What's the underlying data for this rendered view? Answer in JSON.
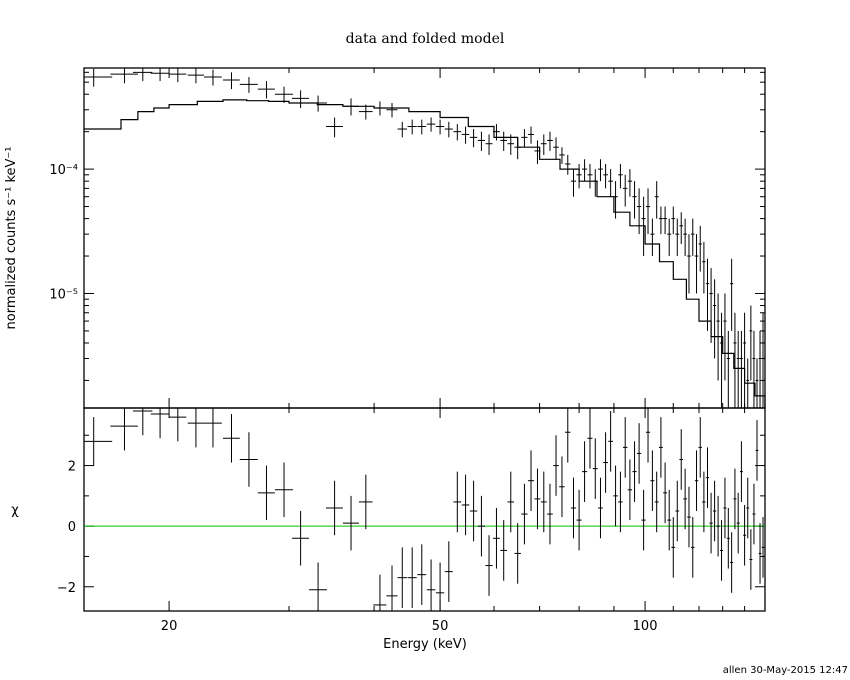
{
  "title": "data and folded model",
  "footer": "allen 30-May-2015 12:47",
  "chart_data": [
    {
      "panel": "spectrum",
      "type": "scatter",
      "title": "data and folded model",
      "xlabel": "Energy (keV)",
      "ylabel": "normalized counts s⁻¹ keV⁻¹",
      "xscale": "log",
      "yscale": "log",
      "xlim": [
        15,
        150
      ],
      "ylim": [
        1.2e-06,
        0.00065
      ],
      "ytick_labels": [
        "10⁻⁴",
        "10⁻⁵"
      ],
      "ytick_values": [
        0.0001,
        1e-05
      ],
      "series": [
        {
          "kind": "data",
          "x": [
            15.5,
            17.2,
            18.3,
            19.4,
            20.6,
            21.9,
            23.2,
            24.7,
            26.2,
            27.8,
            29.5,
            31.2,
            33.1,
            35.0,
            37.0,
            38.9,
            40.8,
            42.5,
            44.0,
            45.5,
            47.0,
            48.5,
            50.0,
            51.5,
            53.0,
            54.5,
            56.0,
            57.5,
            59.0,
            60.5,
            62.0,
            63.5,
            65.0,
            66.5,
            68.0,
            69.5,
            71.0,
            72.5,
            74.0,
            75.5,
            77.0,
            78.5,
            80.0,
            81.5,
            83.0,
            84.5,
            86.0,
            87.5,
            89.0,
            90.5,
            92.0,
            93.5,
            95.0,
            96.5,
            98.0,
            99.5,
            101.0,
            102.5,
            104.0,
            105.5,
            107.0,
            108.5,
            110.0,
            111.5,
            113.0,
            114.5,
            116.0,
            117.5,
            119.0,
            120.5,
            122.0,
            123.5,
            125.0,
            126.5,
            128.0,
            129.5,
            131.0,
            132.5,
            134.0,
            135.5,
            137.0,
            138.5,
            140.0,
            141.5,
            143.0,
            144.5,
            146.0,
            147.5,
            149.0
          ],
          "xerr": [
            1.0,
            0.8,
            0.6,
            0.6,
            0.6,
            0.6,
            0.7,
            0.7,
            0.8,
            0.8,
            0.9,
            0.9,
            1.0,
            1.0,
            1.0,
            0.9,
            0.9,
            0.8,
            0.7,
            0.7,
            0.7,
            0.7,
            0.7,
            0.7,
            0.7,
            0.7,
            0.7,
            0.7,
            0.7,
            0.7,
            0.7,
            0.7,
            0.7,
            0.7,
            0.7,
            0.7,
            0.7,
            0.7,
            0.7,
            0.7,
            0.7,
            0.7,
            0.7,
            0.7,
            0.7,
            0.7,
            0.7,
            0.7,
            0.7,
            0.7,
            0.7,
            0.7,
            0.7,
            0.7,
            0.7,
            0.7,
            0.7,
            0.7,
            0.7,
            0.7,
            0.7,
            0.7,
            0.7,
            0.7,
            0.7,
            0.7,
            0.7,
            0.7,
            0.7,
            0.7,
            0.7,
            0.7,
            0.7,
            0.7,
            0.7,
            0.7,
            0.7,
            0.7,
            0.7,
            0.7,
            0.7,
            0.7,
            0.7,
            0.7,
            0.7,
            0.7,
            0.7,
            0.7,
            0.7
          ],
          "y": [
            0.00055,
            0.00058,
            0.0006,
            0.00059,
            0.00058,
            0.00057,
            0.00055,
            0.00052,
            0.00048,
            0.00044,
            0.0004,
            0.00037,
            0.00034,
            0.00022,
            0.00032,
            0.00029,
            0.00031,
            0.0003,
            0.00021,
            0.00022,
            0.00022,
            0.00023,
            0.00022,
            0.00021,
            0.0002,
            0.00019,
            0.00018,
            0.00017,
            0.00016,
            0.0002,
            0.00017,
            0.00016,
            0.00015,
            0.00018,
            0.00019,
            0.00014,
            0.00016,
            0.00017,
            0.00015,
            0.00013,
            0.00011,
            8e-05,
            9e-05,
            0.0001,
            9e-05,
            8e-05,
            0.0001,
            9e-05,
            8e-05,
            6e-05,
            9e-05,
            7e-05,
            8e-05,
            6e-05,
            5e-05,
            4e-05,
            5e-05,
            3e-05,
            6e-05,
            4e-05,
            4e-05,
            3e-05,
            4e-05,
            3e-05,
            3.5e-05,
            3e-05,
            2e-05,
            3e-05,
            2e-05,
            2.5e-05,
            1.8e-05,
            1.2e-05,
            1e-05,
            8e-06,
            6e-06,
            4e-06,
            6e-06,
            3e-06,
            1.2e-05,
            4e-06,
            3e-06,
            3e-06,
            4e-06,
            2e-06,
            5e-06,
            3e-06,
            2e-06,
            3e-06,
            4e-06
          ],
          "yerr_lo": [
            9e-05,
            9e-05,
            9e-05,
            8e-05,
            8e-05,
            8e-05,
            8e-05,
            8e-05,
            7e-05,
            7e-05,
            6e-05,
            6e-05,
            5e-05,
            4e-05,
            5e-05,
            4e-05,
            4e-05,
            4e-05,
            3e-05,
            3e-05,
            3e-05,
            3e-05,
            3e-05,
            3e-05,
            3e-05,
            3e-05,
            3e-05,
            3e-05,
            3e-05,
            3e-05,
            3e-05,
            3e-05,
            3e-05,
            3e-05,
            3e-05,
            3e-05,
            3e-05,
            3e-05,
            3e-05,
            2e-05,
            2e-05,
            2e-05,
            2e-05,
            2e-05,
            2e-05,
            2e-05,
            2e-05,
            2e-05,
            2e-05,
            2e-05,
            2e-05,
            2e-05,
            2e-05,
            2e-05,
            2e-05,
            2e-05,
            2e-05,
            1e-05,
            2e-05,
            1e-05,
            1e-05,
            1e-05,
            1e-05,
            1e-05,
            1e-05,
            1e-05,
            1e-05,
            1e-05,
            1e-05,
            1e-05,
            8e-06,
            7e-06,
            6e-06,
            5e-06,
            4e-06,
            3e-06,
            4e-06,
            2e-06,
            7e-06,
            3e-06,
            2e-06,
            2e-06,
            3e-06,
            1e-06,
            3e-06,
            2e-06,
            1e-06,
            2e-06,
            3e-06
          ],
          "yerr_hi": [
            9e-05,
            9e-05,
            9e-05,
            8e-05,
            8e-05,
            8e-05,
            8e-05,
            8e-05,
            7e-05,
            7e-05,
            6e-05,
            6e-05,
            5e-05,
            4e-05,
            5e-05,
            4e-05,
            4e-05,
            4e-05,
            3e-05,
            3e-05,
            3e-05,
            3e-05,
            3e-05,
            3e-05,
            3e-05,
            3e-05,
            3e-05,
            3e-05,
            3e-05,
            3e-05,
            3e-05,
            3e-05,
            3e-05,
            3e-05,
            3e-05,
            3e-05,
            3e-05,
            3e-05,
            3e-05,
            2e-05,
            2e-05,
            2e-05,
            2e-05,
            2e-05,
            2e-05,
            2e-05,
            2e-05,
            2e-05,
            2e-05,
            2e-05,
            2e-05,
            2e-05,
            2e-05,
            2e-05,
            2e-05,
            2e-05,
            2e-05,
            1e-05,
            2e-05,
            1e-05,
            1e-05,
            1e-05,
            1e-05,
            1e-05,
            1e-05,
            1e-05,
            1e-05,
            1e-05,
            1e-05,
            1e-05,
            8e-06,
            7e-06,
            6e-06,
            5e-06,
            4e-06,
            3e-06,
            4e-06,
            2e-06,
            7e-06,
            3e-06,
            2e-06,
            2e-06,
            3e-06,
            1e-06,
            3e-06,
            2e-06,
            1e-06,
            2e-06,
            3e-06
          ]
        },
        {
          "kind": "model",
          "x": [
            15,
            17,
            18,
            19,
            20,
            22,
            24,
            26,
            28,
            30,
            33,
            36,
            40,
            45,
            50,
            55,
            60,
            65,
            70,
            75,
            80,
            85,
            90,
            95,
            100,
            105,
            110,
            115,
            120,
            125,
            130,
            135,
            140,
            145,
            150
          ],
          "y": [
            0.00021,
            0.00025,
            0.00029,
            0.00031,
            0.00033,
            0.00035,
            0.00036,
            0.000355,
            0.00035,
            0.00034,
            0.00033,
            0.00032,
            0.00031,
            0.00029,
            0.00026,
            0.00022,
            0.00018,
            0.00015,
            0.00012,
            0.0001,
            8e-05,
            6e-05,
            4.5e-05,
            3.5e-05,
            2.5e-05,
            1.8e-05,
            1.3e-05,
            9e-06,
            6e-06,
            4.5e-06,
            3.3e-06,
            2.5e-06,
            1.9e-06,
            1.5e-06,
            1.2e-06
          ]
        }
      ]
    },
    {
      "panel": "residuals",
      "type": "scatter",
      "xlabel": "Energy (keV)",
      "ylabel": "χ",
      "xscale": "log",
      "xlim": [
        15,
        150
      ],
      "ylim": [
        -2.8,
        3.9
      ],
      "ytick_values": [
        2,
        0,
        -2
      ],
      "ytick_labels": [
        "2",
        "0",
        "−2"
      ],
      "xtick_values": [
        20,
        50,
        100
      ],
      "xtick_labels": [
        "20",
        "50",
        "100"
      ],
      "zero_line_color": "#00c000",
      "series": [
        {
          "kind": "residuals",
          "x": [
            15.5,
            17.2,
            18.3,
            19.4,
            20.6,
            21.9,
            23.2,
            24.7,
            26.2,
            27.8,
            29.5,
            31.2,
            33.1,
            35.0,
            37.0,
            38.9,
            40.8,
            42.5,
            44.0,
            45.5,
            47.0,
            48.5,
            50.0,
            51.5,
            53.0,
            54.5,
            56.0,
            57.5,
            59.0,
            60.5,
            62.0,
            63.5,
            65.0,
            66.5,
            68.0,
            69.5,
            71.0,
            72.5,
            74.0,
            75.5,
            77.0,
            78.5,
            80.0,
            81.5,
            83.0,
            84.5,
            86.0,
            87.5,
            89.0,
            90.5,
            92.0,
            93.5,
            95.0,
            96.5,
            98.0,
            99.5,
            101.0,
            102.5,
            104.0,
            105.5,
            107.0,
            108.5,
            110.0,
            111.5,
            113.0,
            114.5,
            116.0,
            117.5,
            119.0,
            120.5,
            122.0,
            123.5,
            125.0,
            126.5,
            128.0,
            129.5,
            131.0,
            132.5,
            134.0,
            135.5,
            137.0,
            138.5,
            140.0,
            141.5,
            143.0,
            144.5,
            146.0,
            147.5,
            149.0
          ],
          "y": [
            2.8,
            3.3,
            3.8,
            3.7,
            3.6,
            3.4,
            3.4,
            2.9,
            2.2,
            1.1,
            1.2,
            -0.4,
            -2.1,
            0.6,
            0.1,
            0.8,
            -2.6,
            -2.3,
            -1.7,
            -1.7,
            -1.6,
            -2.1,
            -2.2,
            -1.5,
            0.8,
            0.7,
            0.5,
            0.0,
            -1.3,
            -0.4,
            -0.8,
            0.8,
            -0.9,
            0.4,
            1.5,
            0.9,
            0.8,
            0.4,
            2.0,
            1.3,
            3.1,
            0.6,
            0.2,
            1.8,
            2.9,
            1.9,
            0.6,
            2.1,
            2.8,
            1.0,
            0.8,
            2.6,
            1.2,
            1.8,
            2.4,
            0.2,
            3.1,
            1.5,
            0.8,
            2.6,
            1.1,
            0.2,
            -0.7,
            0.5,
            2.2,
            0.9,
            0.3,
            -0.7,
            1.5,
            2.6,
            0.8,
            1.6,
            0.1,
            0.5,
            0.0,
            -0.8,
            0.6,
            -0.4,
            -1.2,
            0.9,
            0.1,
            1.8,
            -0.3,
            0.6,
            -1.1,
            0.4,
            2.5,
            -0.9,
            -0.7
          ],
          "yerr": [
            0.8,
            0.8,
            0.8,
            0.8,
            0.8,
            0.8,
            0.8,
            0.8,
            0.9,
            0.9,
            0.9,
            0.9,
            0.9,
            0.9,
            0.9,
            0.9,
            1.0,
            1.0,
            1.0,
            1.0,
            1.0,
            1.0,
            1.0,
            1.0,
            1.0,
            1.0,
            1.0,
            1.0,
            1.0,
            1.0,
            1.0,
            1.0,
            1.0,
            1.0,
            1.0,
            1.0,
            1.0,
            1.0,
            1.0,
            1.0,
            1.0,
            1.0,
            1.0,
            1.0,
            1.0,
            1.0,
            1.0,
            1.0,
            1.0,
            1.0,
            1.0,
            1.0,
            1.0,
            1.0,
            1.0,
            1.0,
            1.0,
            1.0,
            1.0,
            1.0,
            1.0,
            1.0,
            1.0,
            1.0,
            1.0,
            1.0,
            1.0,
            1.0,
            1.0,
            1.0,
            1.0,
            1.0,
            1.0,
            1.0,
            1.0,
            1.0,
            1.0,
            1.0,
            1.0,
            1.0,
            1.0,
            1.0,
            1.0,
            1.0,
            1.0,
            1.0,
            1.0,
            1.0,
            1.0
          ]
        }
      ]
    }
  ]
}
